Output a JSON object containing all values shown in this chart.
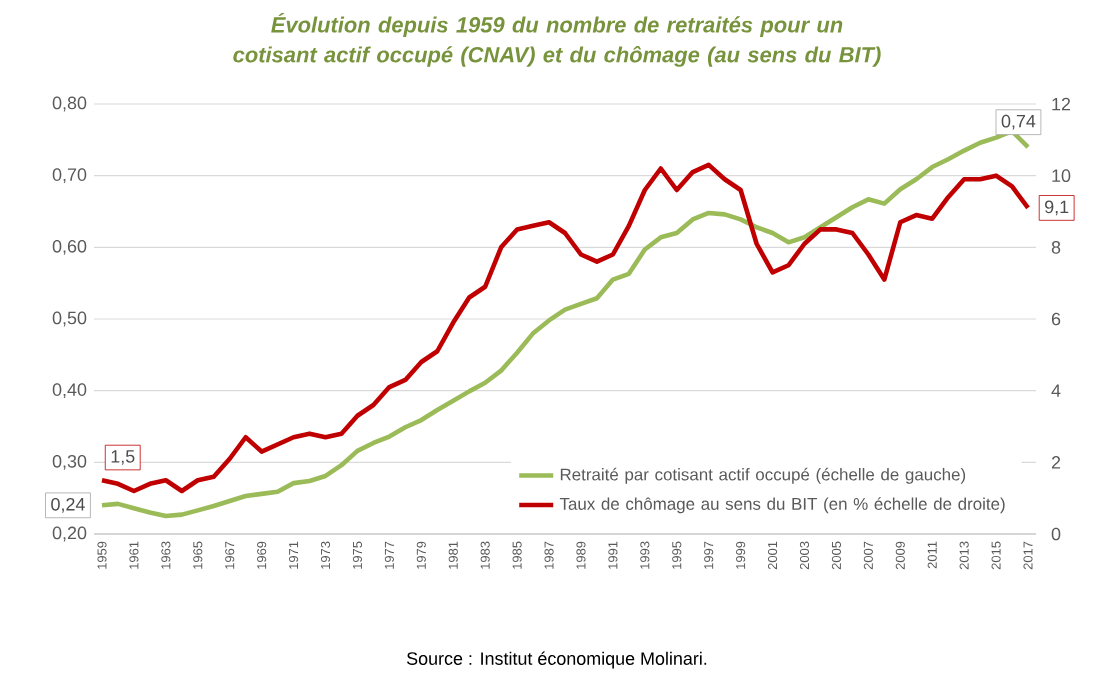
{
  "chart_data": {
    "type": "line",
    "title": "Évolution depuis 1959 du nombre de retraités pour un cotisant actif occupé (CNAV) et du chômage (au sens du BIT)",
    "annotations": [
      "Source : Institut économique  Molinari."
    ],
    "categories": [
      "1959",
      null,
      "1961",
      null,
      "1963",
      null,
      "1965",
      null,
      "1967",
      null,
      "1969",
      null,
      "1971",
      null,
      "1973",
      null,
      "1975",
      null,
      "1977",
      null,
      "1979",
      null,
      "1981",
      null,
      "1983",
      null,
      "1985",
      null,
      "1987",
      null,
      "1989",
      null,
      "1991",
      null,
      "1993",
      null,
      "1995",
      null,
      "1997",
      null,
      "1999",
      null,
      "2001",
      null,
      "2003",
      null,
      "2005",
      null,
      "2007",
      null,
      "2009",
      null,
      "2011",
      null,
      "2013",
      null,
      "2015",
      null,
      "2017"
    ],
    "series": [
      {
        "name": "Retraité par cotisant actif occupé (échelle de gauche)",
        "color": "#9bbb59",
        "values": [
          0.24,
          0.242,
          0.236,
          0.23,
          0.225,
          0.227,
          0.233,
          0.239,
          0.246,
          0.253,
          0.256,
          0.259,
          0.271,
          0.274,
          0.281,
          0.296,
          0.316,
          0.327,
          0.336,
          0.349,
          0.359,
          0.373,
          0.386,
          0.399,
          0.411,
          0.428,
          0.453,
          0.48,
          0.498,
          0.513,
          0.521,
          0.529,
          0.555,
          0.563,
          0.597,
          0.614,
          0.62,
          0.639,
          0.648,
          0.646,
          0.639,
          0.628,
          0.62,
          0.607,
          0.614,
          0.628,
          0.642,
          0.656,
          0.667,
          0.661,
          0.681,
          0.695,
          0.712,
          0.723,
          0.735,
          0.746,
          0.753,
          0.762,
          0.74
        ],
        "value_labels": [
          "0,24",
          null,
          null,
          null,
          null,
          null,
          null,
          null,
          null,
          null,
          null,
          null,
          null,
          null,
          null,
          null,
          null,
          null,
          null,
          null,
          null,
          null,
          null,
          null,
          null,
          null,
          null,
          null,
          null,
          null,
          null,
          null,
          null,
          null,
          null,
          null,
          null,
          null,
          null,
          null,
          null,
          null,
          null,
          null,
          null,
          null,
          null,
          null,
          null,
          null,
          null,
          null,
          null,
          null,
          null,
          null,
          null,
          null,
          "0,74"
        ]
      },
      {
        "name": "Taux de chômage au sens du BIT (en % échelle de droite)",
        "color": "#c00000",
        "axis": "y2",
        "values": [
          1.5,
          1.4,
          1.2,
          1.4,
          1.5,
          1.2,
          1.5,
          1.6,
          2.1,
          2.7,
          2.3,
          2.5,
          2.7,
          2.8,
          2.7,
          2.8,
          3.3,
          3.6,
          4.1,
          4.3,
          4.8,
          5.1,
          5.9,
          6.6,
          6.9,
          8.0,
          8.5,
          8.6,
          8.7,
          8.4,
          7.8,
          7.6,
          7.8,
          8.6,
          9.6,
          10.2,
          9.6,
          10.1,
          10.3,
          9.9,
          9.6,
          8.1,
          7.3,
          7.5,
          8.1,
          8.5,
          8.5,
          8.4,
          7.8,
          7.1,
          8.7,
          8.9,
          8.8,
          9.4,
          9.9,
          9.9,
          10.0,
          9.7,
          9.1
        ],
        "value_labels": [
          "1,5",
          null,
          null,
          null,
          null,
          null,
          null,
          null,
          null,
          null,
          null,
          null,
          null,
          null,
          null,
          null,
          null,
          null,
          null,
          null,
          null,
          null,
          null,
          null,
          null,
          null,
          null,
          null,
          null,
          null,
          null,
          null,
          null,
          null,
          null,
          null,
          null,
          null,
          null,
          null,
          null,
          null,
          null,
          null,
          null,
          null,
          null,
          null,
          null,
          null,
          null,
          null,
          null,
          null,
          null,
          null,
          null,
          null,
          "9,1"
        ]
      }
    ],
    "ylim": [
      0.2,
      0.8
    ],
    "yticks": [
      {
        "value": 0.2,
        "label": "0,20"
      },
      {
        "value": 0.3,
        "label": "0,30"
      },
      {
        "value": 0.4,
        "label": "0,40"
      },
      {
        "value": 0.5,
        "label": "0,50"
      },
      {
        "value": 0.6,
        "label": "0,60"
      },
      {
        "value": 0.7,
        "label": "0,70"
      },
      {
        "value": 0.8,
        "label": "0,80"
      }
    ],
    "y2lim": [
      0,
      12
    ],
    "y2ticks": [
      0,
      2,
      4,
      6,
      8,
      10,
      12
    ],
    "grid": true,
    "legend": "bottom right"
  }
}
